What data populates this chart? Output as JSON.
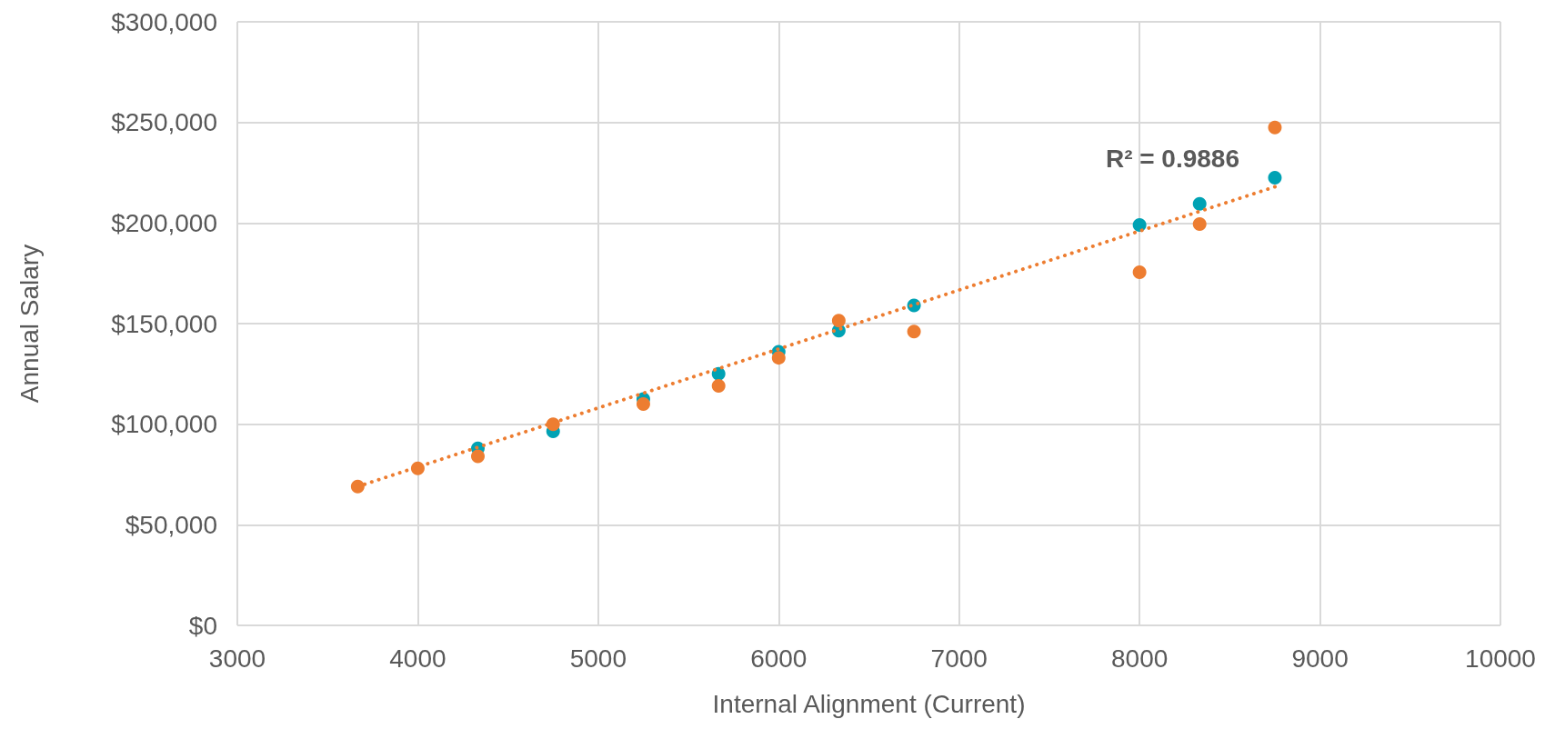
{
  "chart_data": {
    "type": "scatter",
    "xlabel": "Internal Alignment (Current)",
    "ylabel": "Annual Salary",
    "x": [
      3667,
      4000,
      4333,
      4750,
      5250,
      5667,
      6000,
      6333,
      6750,
      8000,
      8333,
      8750
    ],
    "series": [
      {
        "color": "#00a2b4",
        "values": [
          null,
          null,
          88000,
          96500,
          112500,
          125000,
          136000,
          146500,
          159000,
          199000,
          209500,
          222500
        ]
      },
      {
        "color": "#ed7d31",
        "values": [
          69000,
          78000,
          84000,
          100000,
          110000,
          119000,
          133000,
          151500,
          146000,
          175500,
          199500,
          247500
        ]
      },
      {
        "type": "line",
        "color": "#ed7d31",
        "x": [
          3667,
          8750
        ],
        "values": [
          69000,
          218000
        ],
        "line_style": "dotted",
        "marker": "none"
      }
    ],
    "annotations": [
      "R² = 0.9886"
    ],
    "marker": "circle",
    "xlim": [
      3000,
      10000
    ],
    "xticks": [
      3000,
      4000,
      5000,
      6000,
      7000,
      8000,
      9000,
      10000
    ],
    "ylim": [
      0,
      300000
    ],
    "yticks": [
      {
        "value": 0,
        "label": "$0"
      },
      {
        "value": 50000,
        "label": "$50,000"
      },
      {
        "value": 100000,
        "label": "$100,000"
      },
      {
        "value": 150000,
        "label": "$150,000"
      },
      {
        "value": 200000,
        "label": "$200,000"
      },
      {
        "value": 250000,
        "label": "$250,000"
      },
      {
        "value": 300000,
        "label": "$300,000"
      }
    ],
    "grid": true
  }
}
